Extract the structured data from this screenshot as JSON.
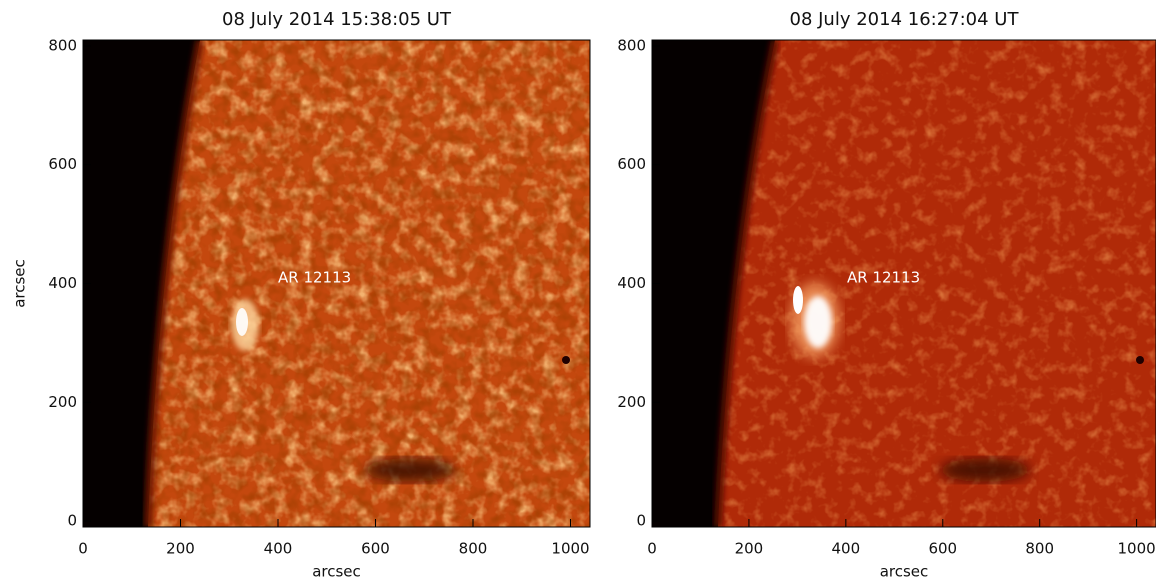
{
  "chart_data": [
    {
      "type": "image",
      "title": "08 July 2014 15:38:05 UT",
      "xlabel": "arcsec",
      "ylabel": "arcsec",
      "annotation": "AR 12113",
      "xlim": [
        0,
        1040
      ],
      "ylim": [
        -10,
        810
      ],
      "xticks": [
        0,
        200,
        400,
        600,
        800,
        1000
      ],
      "yticks": [
        0,
        200,
        400,
        600,
        800
      ]
    },
    {
      "type": "image",
      "title": "08 July 2014 16:27:04 UT",
      "xlabel": "arcsec",
      "annotation": "AR 12113",
      "xlim": [
        0,
        1040
      ],
      "ylim": [
        -10,
        810
      ],
      "xticks": [
        0,
        200,
        400,
        600,
        800,
        1000
      ],
      "yticks": [
        0,
        200,
        400,
        600,
        800
      ]
    }
  ]
}
